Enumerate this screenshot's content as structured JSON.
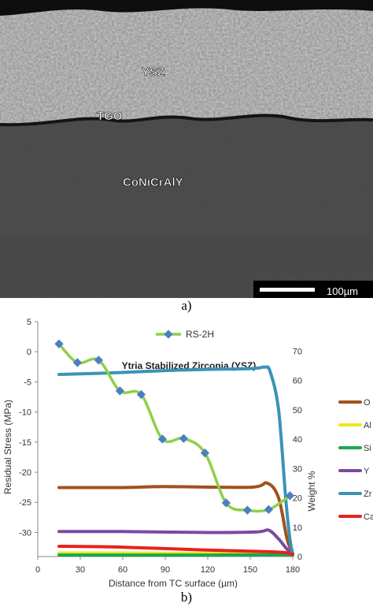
{
  "figure": {
    "micrograph": {
      "labels": {
        "ysz": "YSZ",
        "tgo": "TGO",
        "bond": "CoNiCrAlY"
      },
      "scale_bar": "100µm"
    },
    "caption_a": "a)",
    "caption_b": "b)"
  },
  "chart_data": {
    "type": "line",
    "annotation": "Ytria Stabilized Zirconia (YSZ)",
    "xlabel": "Distance from TC surface (µm)",
    "ylabel": "Residual Stress (MPa)",
    "y2label": "Weight %",
    "xlim": [
      0,
      180
    ],
    "ylim": [
      -34,
      5
    ],
    "y2lim": [
      0,
      80
    ],
    "x_ticks": [
      0,
      30,
      60,
      90,
      120,
      150,
      180
    ],
    "y_ticks": [
      5,
      0,
      -5,
      -10,
      -15,
      -20,
      -25,
      -30
    ],
    "y2_ticks": [
      70,
      60,
      50,
      40,
      30,
      20,
      10,
      0
    ],
    "stress_series": {
      "name": "RS-2H",
      "color": "#8fcf4a",
      "marker_color": "#4a7fc1",
      "x": [
        15,
        28,
        43,
        58,
        73,
        88,
        103,
        118,
        133,
        148,
        163,
        178
      ],
      "values": [
        1.3,
        -1.8,
        -1.4,
        -6.5,
        -7.1,
        -14.5,
        -14.4,
        -16.8,
        -25.1,
        -26.3,
        -26.2,
        -23.9
      ]
    },
    "composition_series": [
      {
        "name": "O",
        "color": "#a0521c",
        "x": [
          15,
          60,
          90,
          150,
          162,
          170,
          176,
          180
        ],
        "values": [
          23.5,
          23.5,
          23.8,
          23.6,
          25,
          20,
          6,
          1
        ]
      },
      {
        "name": "Al",
        "color": "#f0e61e",
        "x": [
          15,
          60,
          120,
          170,
          180
        ],
        "values": [
          1.2,
          1.2,
          1.1,
          1.0,
          0.8
        ]
      },
      {
        "name": "Si",
        "color": "#18a84f",
        "x": [
          15,
          60,
          120,
          170,
          180
        ],
        "values": [
          0.5,
          0.5,
          0.5,
          0.6,
          0.5
        ]
      },
      {
        "name": "Y",
        "color": "#7b4aa0",
        "x": [
          15,
          60,
          120,
          155,
          163,
          170,
          176,
          180
        ],
        "values": [
          8.5,
          8.5,
          8.2,
          8.4,
          9.0,
          6.0,
          2.5,
          1.0
        ]
      },
      {
        "name": "Zr",
        "color": "#3b93b7",
        "x": [
          15,
          50,
          100,
          150,
          160,
          164,
          170,
          175,
          178,
          180
        ],
        "values": [
          62,
          62.5,
          63.5,
          64,
          64.5,
          63,
          50,
          20,
          6,
          1
        ]
      },
      {
        "name": "Ca",
        "color": "#e8221c",
        "x": [
          15,
          60,
          120,
          170,
          180
        ],
        "values": [
          3.5,
          3.2,
          2.2,
          1.5,
          0.7
        ]
      }
    ]
  }
}
